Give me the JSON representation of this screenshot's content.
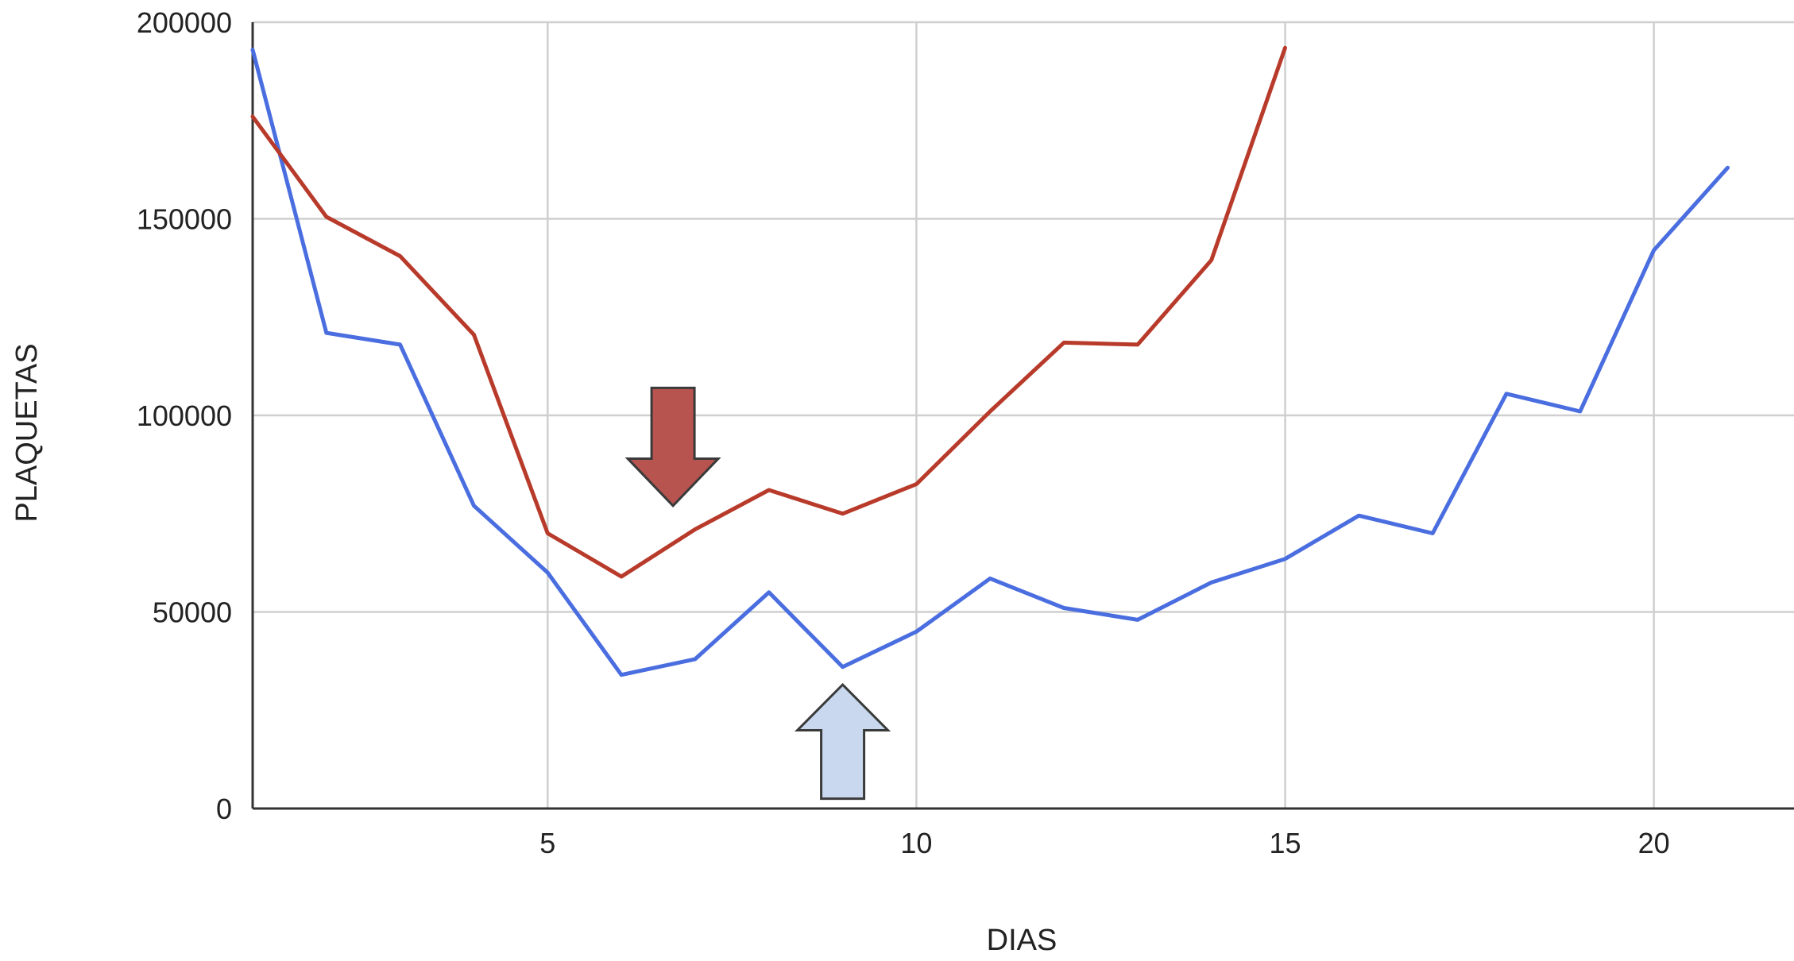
{
  "chart_data": {
    "type": "line",
    "xlabel": "DIAS",
    "ylabel": "PLAQUETAS",
    "xlim": [
      1,
      21.9
    ],
    "ylim": [
      0,
      200000
    ],
    "xticks": [
      5,
      10,
      15,
      20
    ],
    "yticks": [
      0,
      50000,
      100000,
      150000,
      200000
    ],
    "x_tick_labels": [
      "5",
      "10",
      "15",
      "20"
    ],
    "y_tick_labels": [
      "0",
      "50000",
      "100000",
      "150000",
      "200000"
    ],
    "grid": true,
    "legend": "none",
    "series": [
      {
        "color": "#4a6ee0",
        "x": [
          1,
          2,
          3,
          4,
          5,
          6,
          7,
          8,
          9,
          10,
          11,
          12,
          13,
          14,
          15,
          16,
          17,
          18,
          19,
          20,
          21
        ],
        "y": [
          193000,
          121000,
          118000,
          77000,
          60000,
          34000,
          38000,
          55000,
          36000,
          45000,
          58500,
          51000,
          48000,
          57500,
          63500,
          74500,
          70000,
          105500,
          101000,
          142000,
          163000
        ]
      },
      {
        "color": "#b83a2a",
        "x": [
          1,
          2,
          3,
          4,
          5,
          6,
          7,
          8,
          9,
          10,
          11,
          12,
          13,
          14,
          15
        ],
        "y": [
          176000,
          150500,
          140500,
          120500,
          70000,
          59000,
          71000,
          81000,
          75000,
          82500,
          101000,
          118500,
          118000,
          139500,
          193500
        ]
      }
    ],
    "annotations": [
      {
        "kind": "arrow-down",
        "color": "#b85450",
        "x": 6.7,
        "y_top": 107000,
        "y_tip": 77000
      },
      {
        "kind": "arrow-up",
        "color": "#c9d8ee",
        "x": 9,
        "y_top": 31500,
        "y_bottom": 2500
      }
    ]
  }
}
